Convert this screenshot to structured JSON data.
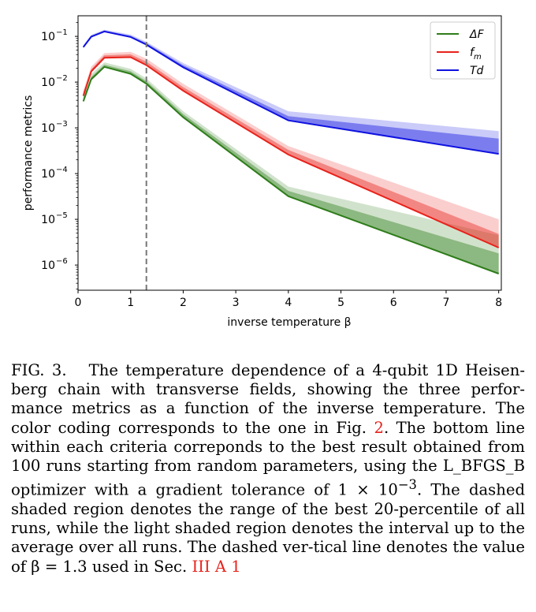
{
  "chart_data": {
    "type": "line",
    "xlabel": "inverse temperature β",
    "ylabel": "performance metrics",
    "xlim": [
      0,
      8.05
    ],
    "ylim_log10": [
      -6.55,
      -0.55
    ],
    "yscale": "log",
    "x_ticks": [
      0,
      1,
      2,
      3,
      4,
      5,
      6,
      7,
      8
    ],
    "y_ticks": [
      {
        "exp": -1,
        "label": "−1"
      },
      {
        "exp": -2,
        "label": "−2"
      },
      {
        "exp": -3,
        "label": "−3"
      },
      {
        "exp": -4,
        "label": "−4"
      },
      {
        "exp": -5,
        "label": "−5"
      },
      {
        "exp": -6,
        "label": "−6"
      }
    ],
    "y_tick_base": "10",
    "vline": 1.3,
    "legend_position": "top-right",
    "x": [
      0.1,
      0.25,
      0.5,
      1.0,
      1.3,
      2.0,
      4.0,
      8.0
    ],
    "series": [
      {
        "name": "ΔF",
        "legend_main": "ΔF",
        "legend_sub": "",
        "color": "#2e7d19",
        "best": [
          0.0038,
          0.0115,
          0.0215,
          0.0152,
          0.0092,
          0.0017,
          3.2e-05,
          6.5e-07
        ],
        "p20": [
          0.0045,
          0.013,
          0.024,
          0.0172,
          0.0105,
          0.002,
          4.2e-05,
          1.8e-06
        ],
        "mean": [
          0.0052,
          0.015,
          0.027,
          0.0195,
          0.012,
          0.0023,
          5.2e-05,
          4.5e-06
        ]
      },
      {
        "name": "fm",
        "legend_main": "f",
        "legend_sub": "m",
        "color": "#e8221b",
        "best": [
          0.005,
          0.017,
          0.034,
          0.035,
          0.0235,
          0.0065,
          0.00026,
          2.4e-06
        ],
        "p20": [
          0.0058,
          0.019,
          0.0385,
          0.0405,
          0.028,
          0.0078,
          0.00033,
          4.8e-06
        ],
        "mean": [
          0.0066,
          0.0215,
          0.043,
          0.046,
          0.0325,
          0.0092,
          0.0004,
          1e-05
        ]
      },
      {
        "name": "Td",
        "legend_main": "Td",
        "legend_sub": "",
        "color": "#0f12e0",
        "best": [
          0.058,
          0.098,
          0.128,
          0.097,
          0.066,
          0.021,
          0.00145,
          0.00027
        ],
        "p20": [
          0.061,
          0.103,
          0.134,
          0.103,
          0.071,
          0.0235,
          0.0018,
          0.00058
        ],
        "mean": [
          0.064,
          0.108,
          0.14,
          0.109,
          0.076,
          0.026,
          0.0023,
          0.00085
        ]
      }
    ]
  },
  "caption": {
    "label": "FIG. 3.",
    "text_before": "The temperature dependence of a 4-qubit 1D Heisen-berg chain with transverse fields, showing the three perfor-mance metrics as a function of the inverse temperature. The color coding corresponds to the one in Fig. ",
    "fig_ref": "2",
    "text_mid": ". The bottom line within each criteria correponds to the best result obtained from 100 runs starting from random parameters, using the L_BFGS_B optimizer with a gradient tolerance of 1 × 10",
    "tol_exp": "−3",
    "text_after": ". The dashed shaded region denotes the range of the best 20-percentile of all runs, while the light shaded region denotes the interval up to the average over all runs. The dashed ver-tical line denotes the value of β = 1.3 used in Sec. ",
    "sec_ref": "III A 1"
  }
}
